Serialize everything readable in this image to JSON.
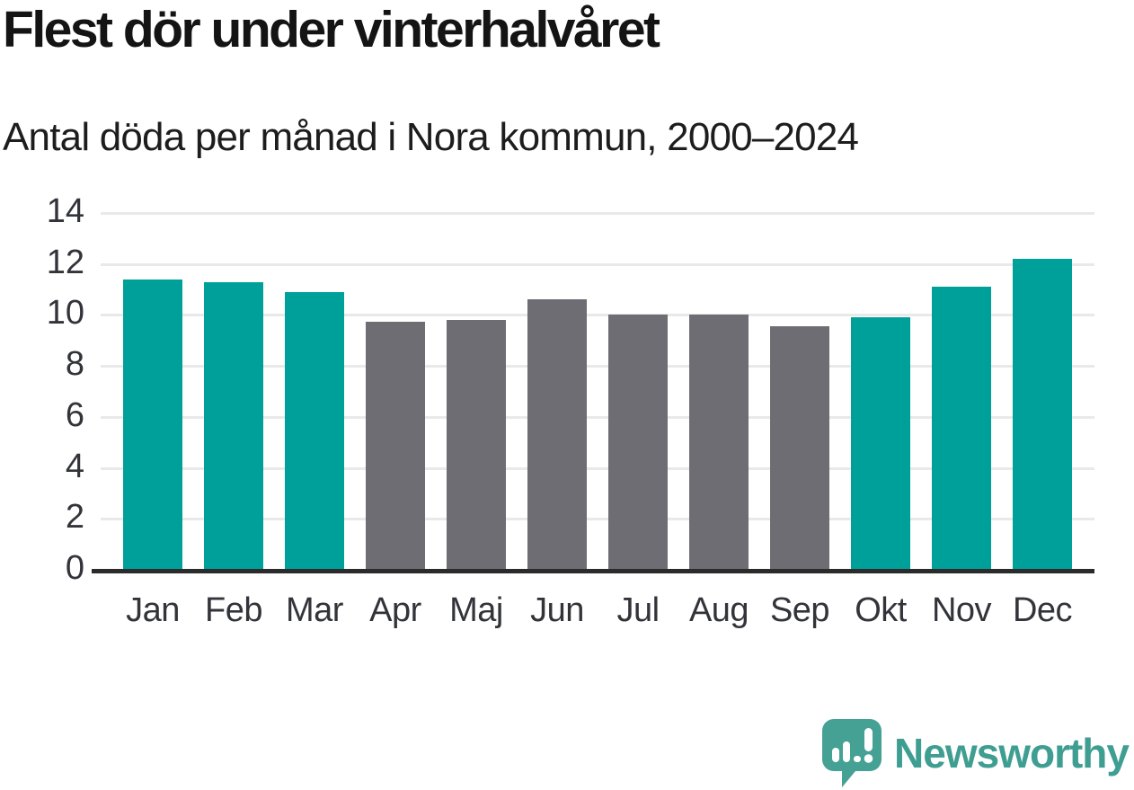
{
  "header": {
    "title": "Flest dör under vinterhalvåret",
    "subtitle": "Antal döda per månad i Nora kommun, 2000–2024"
  },
  "chart_data": {
    "type": "bar",
    "title": "Flest dör under vinterhalvåret",
    "subtitle": "Antal döda per månad i Nora kommun, 2000–2024",
    "categories": [
      "Jan",
      "Feb",
      "Mar",
      "Apr",
      "Maj",
      "Jun",
      "Jul",
      "Aug",
      "Sep",
      "Okt",
      "Nov",
      "Dec"
    ],
    "values": [
      11.4,
      11.3,
      10.9,
      9.75,
      9.8,
      10.6,
      10.0,
      10.0,
      9.55,
      9.9,
      11.1,
      12.2
    ],
    "bar_colors": [
      "#00a09a",
      "#00a09a",
      "#00a09a",
      "#6e6d74",
      "#6e6d74",
      "#6e6d74",
      "#6e6d74",
      "#6e6d74",
      "#6e6d74",
      "#00a09a",
      "#00a09a",
      "#00a09a"
    ],
    "highlight_color": "#00a09a",
    "muted_color": "#6e6d74",
    "xlabel": "",
    "ylabel": "",
    "ylim": [
      0,
      14
    ],
    "yticks": [
      0,
      2,
      4,
      6,
      8,
      10,
      12,
      14
    ],
    "grid": true,
    "legend_position": "none"
  },
  "branding": {
    "logo_text": "Newsworthy",
    "logo_color": "#3f9e92",
    "icon": "newsworthy-bubble-bar-chart-icon",
    "icon_color": "#45a193"
  }
}
